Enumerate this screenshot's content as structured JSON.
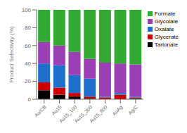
{
  "chart_data": {
    "type": "bar",
    "stacked": true,
    "categories": [
      "Au/CB",
      "Au15",
      "Au15_100",
      "Au15_300",
      "Au15_600",
      "AuAg",
      "Ag/C"
    ],
    "series": [
      {
        "name": "Tartonate",
        "color": "#000000",
        "values": [
          10,
          5,
          3,
          1,
          0,
          0,
          1
        ]
      },
      {
        "name": "Glycerate",
        "color": "#cc0000",
        "values": [
          9,
          8,
          4,
          2,
          2,
          5,
          1
        ]
      },
      {
        "name": "Oxalate",
        "color": "#1f6fcc",
        "values": [
          21,
          25,
          20,
          20,
          1,
          2,
          1
        ]
      },
      {
        "name": "Glycolate",
        "color": "#9b3fb5",
        "values": [
          24,
          22,
          26,
          22,
          38,
          33,
          36
        ]
      },
      {
        "name": "Formate",
        "color": "#33aa33",
        "values": [
          36,
          40,
          47,
          55,
          59,
          60,
          61
        ]
      }
    ],
    "ylabel": "Product Selectivity (%)",
    "ylim": [
      0,
      100
    ],
    "yticks": [
      0,
      20,
      40,
      60,
      80,
      100
    ],
    "grid": false,
    "legend": "upper right"
  }
}
